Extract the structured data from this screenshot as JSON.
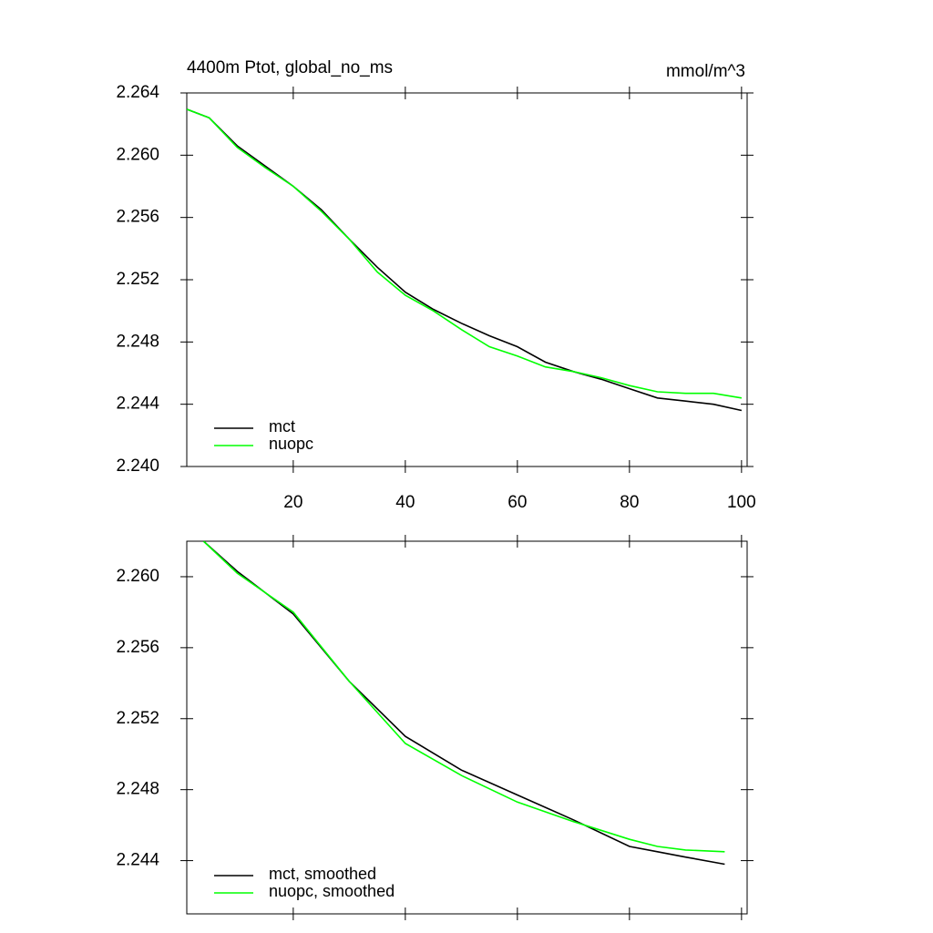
{
  "chart_data": [
    {
      "type": "line",
      "title": "4400m Ptot, global_no_ms",
      "units": "mmol/m^3",
      "x": [
        1,
        5,
        10,
        15,
        20,
        25,
        30,
        35,
        40,
        45,
        50,
        55,
        60,
        65,
        70,
        75,
        80,
        85,
        90,
        95,
        100
      ],
      "series": [
        {
          "name": "mct",
          "color": "#000000",
          "values": [
            2.26295,
            2.2624,
            2.2606,
            2.2593,
            2.258,
            2.2565,
            2.2546,
            2.2528,
            2.2512,
            2.2501,
            2.2492,
            2.2484,
            2.2477,
            2.2467,
            2.2461,
            2.2456,
            2.245,
            2.2444,
            2.2442,
            2.244,
            2.2436
          ]
        },
        {
          "name": "nuopc",
          "color": "#00ff00",
          "values": [
            2.26295,
            2.2624,
            2.2605,
            2.2592,
            2.258,
            2.2564,
            2.2546,
            2.2525,
            2.251,
            2.25,
            2.2488,
            2.2477,
            2.2471,
            2.2464,
            2.2461,
            2.2457,
            2.2452,
            2.2448,
            2.2447,
            2.2447,
            2.2444
          ]
        }
      ],
      "xlim": [
        1,
        101
      ],
      "xticks": [
        20,
        40,
        60,
        80,
        100
      ],
      "ylim": [
        2.24,
        2.264
      ],
      "yticks": [
        {
          "value": 2.24,
          "label": "2.240"
        },
        2.244,
        2.248,
        2.252,
        2.256,
        {
          "value": 2.26,
          "label": "2.260"
        },
        2.264
      ],
      "legend": "lower left"
    },
    {
      "type": "line",
      "x": [
        4,
        10,
        20,
        30,
        40,
        50,
        60,
        70,
        80,
        85,
        90,
        97
      ],
      "series": [
        {
          "name": "mct, smoothed",
          "color": "#000000",
          "values": [
            2.262,
            2.2603,
            2.2579,
            2.2541,
            2.251,
            2.2491,
            2.2477,
            2.2463,
            2.2448,
            2.2445,
            2.2442,
            2.2438
          ]
        },
        {
          "name": "nuopc, smoothed",
          "color": "#00ff00",
          "values": [
            2.262,
            2.2602,
            2.258,
            2.2541,
            2.2506,
            2.2488,
            2.2473,
            2.2462,
            2.2452,
            2.2448,
            2.2446,
            2.2445
          ]
        }
      ],
      "xlim": [
        1,
        101
      ],
      "ylim": [
        2.241,
        2.262
      ],
      "yticks": [
        2.244,
        2.248,
        2.252,
        2.256,
        {
          "value": 2.26,
          "label": "2.260"
        }
      ],
      "legend": "lower left"
    }
  ]
}
